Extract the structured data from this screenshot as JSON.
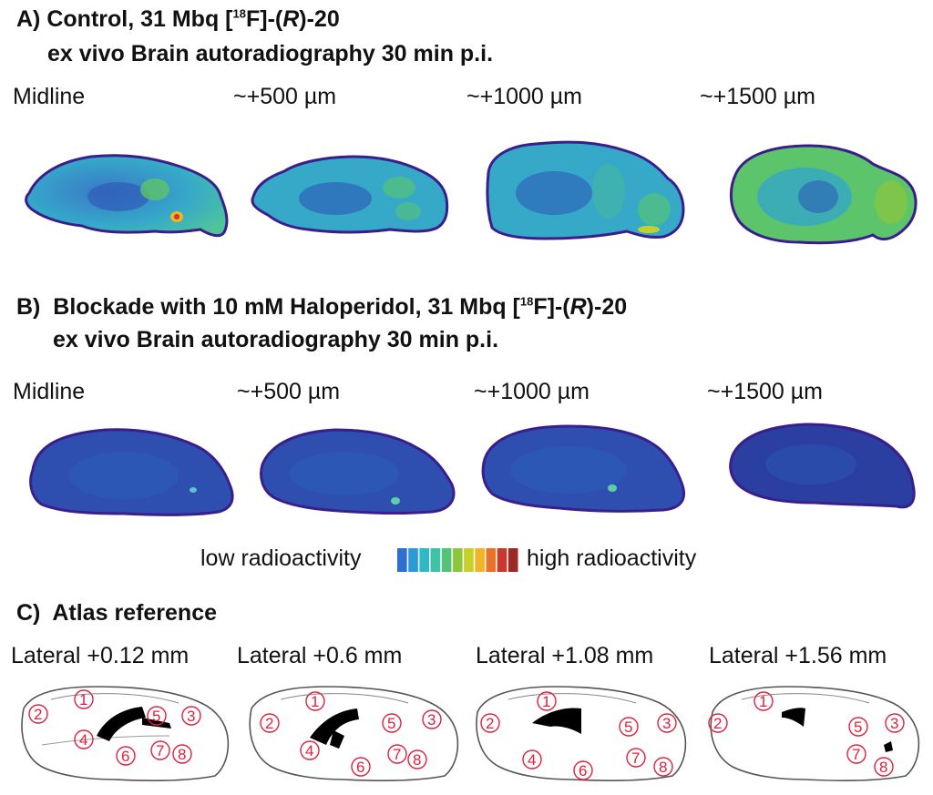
{
  "panelA": {
    "letter": "A)",
    "title_pre": "Control, 31 Mbq [",
    "sup": "18",
    "title_mid": "F]-(",
    "title_r": "R",
    "title_post": ")-20",
    "subtitle": "ex vivo Brain autoradiography 30 min p.i.",
    "labels": [
      "Midline",
      "~+500 µm",
      "~+1000 µm",
      "~+1500 µm"
    ]
  },
  "panelB": {
    "letter": "B)",
    "title_pre": "Blockade with 10 mM Haloperidol, 31 Mbq [",
    "sup": "18",
    "title_mid": "F]-(",
    "title_r": "R",
    "title_post": ")-20",
    "subtitle": "ex vivo Brain autoradiography 30 min p.i.",
    "labels": [
      "Midline",
      "~+500 µm",
      "~+1000 µm",
      "~+1500 µm"
    ]
  },
  "colorbar": {
    "low": "low radioactivity",
    "high": "high radioactivity",
    "colors": [
      "#2f6fd0",
      "#2d9ad8",
      "#2fb8c8",
      "#3cc3a8",
      "#55c377",
      "#8cc63f",
      "#c7cf2a",
      "#f0b427",
      "#e8722a",
      "#c8382c",
      "#9a2a26"
    ]
  },
  "panelC": {
    "letter": "C)",
    "title": "Atlas reference",
    "labels": [
      "Lateral +0.12 mm",
      "Lateral +0.6 mm",
      "Lateral +1.08 mm",
      "Lateral +1.56 mm"
    ],
    "region_numbers": [
      "1",
      "2",
      "3",
      "4",
      "5",
      "6",
      "7",
      "8"
    ]
  }
}
